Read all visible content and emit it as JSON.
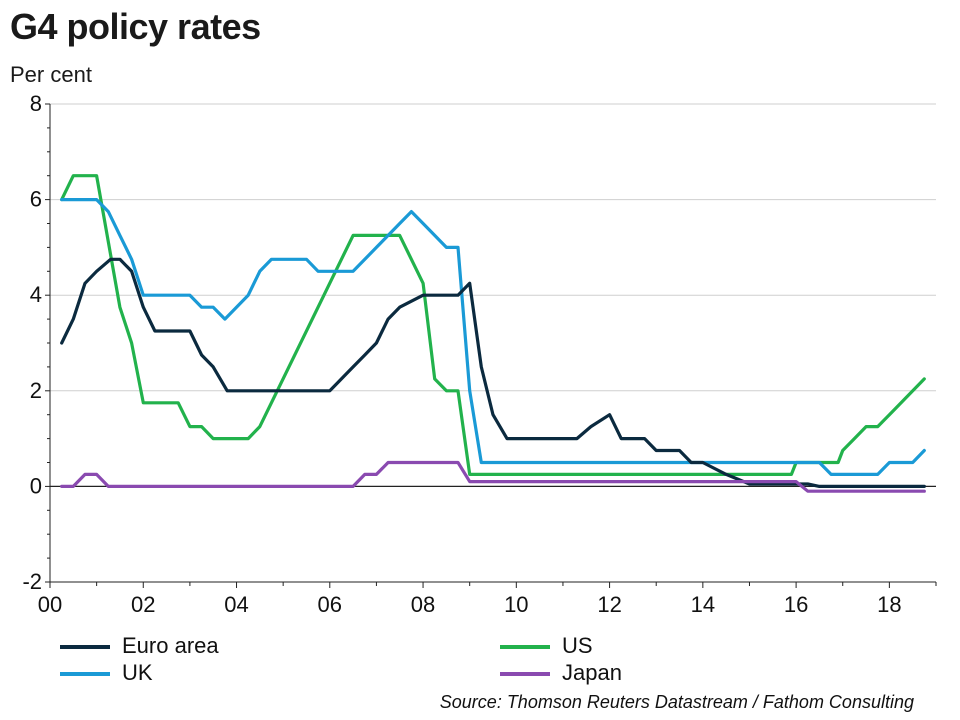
{
  "header": {
    "title": "G4 policy rates",
    "unit": "Per cent"
  },
  "source": "Source: Thomson Reuters Datastream / Fathom Consulting",
  "colors": {
    "euro": "#0b2a3f",
    "uk": "#1a9ad6",
    "us": "#22b24c",
    "japan": "#8a4ab0",
    "grid": "#cfcfcf",
    "axis": "#222222"
  },
  "chart_data": {
    "type": "line",
    "title": "G4 policy rates",
    "ylabel": "Per cent",
    "xlabel": "",
    "xlim": [
      2000,
      2019
    ],
    "ylim": [
      -2,
      8
    ],
    "x_ticks": [
      2000,
      2002,
      2004,
      2006,
      2008,
      2010,
      2012,
      2014,
      2016,
      2018
    ],
    "x_tick_labels": [
      "00",
      "02",
      "04",
      "06",
      "08",
      "10",
      "12",
      "14",
      "16",
      "18"
    ],
    "y_ticks": [
      -2,
      0,
      2,
      4,
      6,
      8
    ],
    "y_tick_labels": [
      "-2",
      "0",
      "2",
      "4",
      "6",
      "8"
    ],
    "grid": true,
    "legend_position": "bottom",
    "series": [
      {
        "name": "Euro area",
        "color": "#0b2a3f",
        "x": [
          2000.25,
          2000.5,
          2000.75,
          2001.0,
          2001.3,
          2001.5,
          2001.75,
          2002.0,
          2002.25,
          2003.0,
          2003.25,
          2003.5,
          2003.8,
          2004.0,
          2005.0,
          2006.0,
          2006.25,
          2006.5,
          2006.75,
          2007.0,
          2007.25,
          2007.5,
          2008.0,
          2008.5,
          2008.75,
          2009.0,
          2009.25,
          2009.5,
          2009.8,
          2010.0,
          2011.0,
          2011.3,
          2011.6,
          2012.0,
          2012.25,
          2012.75,
          2013.0,
          2013.5,
          2013.75,
          2014.0,
          2014.5,
          2015.0,
          2016.0,
          2016.25,
          2016.5,
          2017.0,
          2018.0,
          2018.75
        ],
        "y": [
          3.0,
          3.5,
          4.25,
          4.5,
          4.75,
          4.75,
          4.5,
          3.75,
          3.25,
          3.25,
          2.75,
          2.5,
          2.0,
          2.0,
          2.0,
          2.0,
          2.25,
          2.5,
          2.75,
          3.0,
          3.5,
          3.75,
          4.0,
          4.0,
          4.0,
          4.25,
          2.5,
          1.5,
          1.0,
          1.0,
          1.0,
          1.0,
          1.25,
          1.5,
          1.0,
          1.0,
          0.75,
          0.75,
          0.5,
          0.5,
          0.25,
          0.05,
          0.05,
          0.05,
          0.0,
          0.0,
          0.0,
          0.0
        ]
      },
      {
        "name": "UK",
        "color": "#1a9ad6",
        "x": [
          2000.25,
          2001.0,
          2001.25,
          2001.5,
          2001.75,
          2002.0,
          2003.0,
          2003.25,
          2003.5,
          2003.75,
          2004.0,
          2004.25,
          2004.5,
          2004.75,
          2005.5,
          2005.75,
          2006.5,
          2007.0,
          2007.5,
          2007.75,
          2008.0,
          2008.5,
          2008.75,
          2009.0,
          2009.25,
          2016.5,
          2016.75,
          2017.75,
          2018.0,
          2018.5,
          2018.75
        ],
        "y": [
          6.0,
          6.0,
          5.75,
          5.25,
          4.75,
          4.0,
          4.0,
          3.75,
          3.75,
          3.5,
          3.75,
          4.0,
          4.5,
          4.75,
          4.75,
          4.5,
          4.5,
          5.0,
          5.5,
          5.75,
          5.5,
          5.0,
          5.0,
          2.0,
          0.5,
          0.5,
          0.25,
          0.25,
          0.5,
          0.5,
          0.75
        ]
      },
      {
        "name": "US",
        "color": "#22b24c",
        "x": [
          2000.25,
          2000.5,
          2001.0,
          2001.5,
          2001.75,
          2002.0,
          2002.75,
          2003.0,
          2003.25,
          2003.5,
          2004.25,
          2004.5,
          2006.5,
          2007.5,
          2008.0,
          2008.25,
          2008.5,
          2008.75,
          2009.0,
          2015.9,
          2016.0,
          2016.9,
          2017.0,
          2017.25,
          2017.5,
          2017.75,
          2018.0,
          2018.75
        ],
        "y": [
          6.0,
          6.5,
          6.5,
          3.75,
          3.0,
          1.75,
          1.75,
          1.25,
          1.25,
          1.0,
          1.0,
          1.25,
          5.25,
          5.25,
          4.25,
          2.25,
          2.0,
          2.0,
          0.25,
          0.25,
          0.5,
          0.5,
          0.75,
          1.0,
          1.25,
          1.25,
          1.5,
          2.25
        ]
      },
      {
        "name": "Japan",
        "color": "#8a4ab0",
        "x": [
          2000.25,
          2000.5,
          2000.75,
          2001.0,
          2001.25,
          2006.5,
          2006.75,
          2007.0,
          2007.25,
          2008.75,
          2009.0,
          2016.0,
          2016.25,
          2018.75
        ],
        "y": [
          0.0,
          0.0,
          0.25,
          0.25,
          0.0,
          0.0,
          0.25,
          0.25,
          0.5,
          0.5,
          0.1,
          0.1,
          -0.1,
          -0.1
        ]
      }
    ]
  }
}
